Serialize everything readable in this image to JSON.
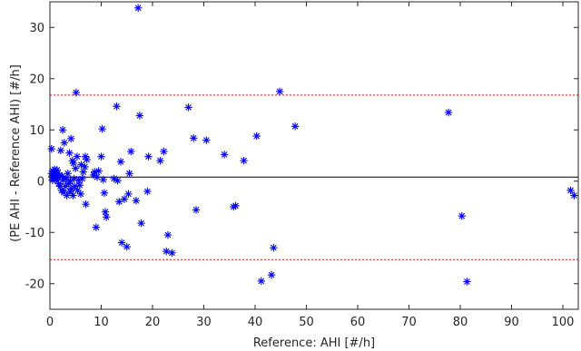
{
  "chart_data": {
    "type": "scatter",
    "xlabel": "Reference: AHI [#/h]",
    "ylabel": "(PE AHI - Reference AHI) [#/h]",
    "xlim": [
      0,
      103
    ],
    "ylim": [
      -25,
      35
    ],
    "xticks": [
      0,
      10,
      20,
      30,
      40,
      50,
      60,
      70,
      80,
      90,
      100
    ],
    "yticks": [
      -20,
      -10,
      0,
      10,
      20,
      30
    ],
    "grid": false,
    "legend": "none",
    "marker": "asterisk",
    "marker_color": "#0000ff",
    "mean_line": {
      "y": 0.8,
      "color": "#000000",
      "style": "solid"
    },
    "limit_lines": [
      {
        "y": 16.8,
        "color": "#ff0000",
        "style": "dotted"
      },
      {
        "y": -15.3,
        "color": "#ff0000",
        "style": "dotted"
      }
    ],
    "points": [
      [
        0.3,
        6.3
      ],
      [
        0.3,
        1.5
      ],
      [
        0.4,
        0.8
      ],
      [
        0.5,
        0.2
      ],
      [
        0.6,
        2.0
      ],
      [
        0.7,
        1.3
      ],
      [
        0.8,
        0.5
      ],
      [
        0.9,
        2.3
      ],
      [
        1.0,
        1.0
      ],
      [
        1.1,
        1.8
      ],
      [
        1.2,
        0.3
      ],
      [
        1.4,
        2.2
      ],
      [
        1.5,
        1.5
      ],
      [
        1.6,
        0.8
      ],
      [
        1.7,
        -0.5
      ],
      [
        1.8,
        1.2
      ],
      [
        2.0,
        -1.0
      ],
      [
        2.1,
        6.0
      ],
      [
        2.3,
        -1.8
      ],
      [
        2.4,
        1.0
      ],
      [
        2.5,
        10.0
      ],
      [
        2.6,
        0.2
      ],
      [
        2.7,
        -2.2
      ],
      [
        2.8,
        7.5
      ],
      [
        3.0,
        -1.0
      ],
      [
        3.2,
        0.5
      ],
      [
        3.3,
        -2.8
      ],
      [
        3.5,
        1.5
      ],
      [
        3.6,
        -0.5
      ],
      [
        3.8,
        5.5
      ],
      [
        3.9,
        -2.0
      ],
      [
        4.0,
        0.0
      ],
      [
        4.1,
        8.3
      ],
      [
        4.2,
        -1.5
      ],
      [
        4.4,
        4.0
      ],
      [
        4.5,
        -2.8
      ],
      [
        4.6,
        3.5
      ],
      [
        4.7,
        0.5
      ],
      [
        4.8,
        -1.0
      ],
      [
        5.0,
        2.5
      ],
      [
        5.1,
        17.3
      ],
      [
        5.3,
        4.8
      ],
      [
        5.4,
        -1.8
      ],
      [
        5.6,
        0.2
      ],
      [
        5.8,
        -0.8
      ],
      [
        6.0,
        -2.5
      ],
      [
        6.1,
        3.2
      ],
      [
        6.3,
        0.5
      ],
      [
        6.5,
        1.8
      ],
      [
        6.8,
        2.8
      ],
      [
        6.9,
        4.8
      ],
      [
        7.0,
        -4.5
      ],
      [
        7.2,
        4.2
      ],
      [
        8.5,
        1.2
      ],
      [
        8.7,
        1.8
      ],
      [
        9.0,
        -9.0
      ],
      [
        9.2,
        0.8
      ],
      [
        9.5,
        2.0
      ],
      [
        10.0,
        4.8
      ],
      [
        10.2,
        10.2
      ],
      [
        10.4,
        0.3
      ],
      [
        10.6,
        -2.3
      ],
      [
        10.8,
        -6.0
      ],
      [
        11.0,
        -7.0
      ],
      [
        12.5,
        0.5
      ],
      [
        13.0,
        14.6
      ],
      [
        13.2,
        0.1
      ],
      [
        13.5,
        -4.0
      ],
      [
        13.8,
        3.8
      ],
      [
        14.0,
        -12.0
      ],
      [
        14.5,
        -3.5
      ],
      [
        15.0,
        -12.8
      ],
      [
        15.3,
        -2.5
      ],
      [
        15.5,
        1.5
      ],
      [
        15.8,
        5.8
      ],
      [
        16.8,
        -3.8
      ],
      [
        17.2,
        33.8
      ],
      [
        17.5,
        12.8
      ],
      [
        17.8,
        -8.2
      ],
      [
        19.0,
        -2.0
      ],
      [
        19.2,
        4.8
      ],
      [
        21.5,
        4.0
      ],
      [
        22.2,
        5.8
      ],
      [
        22.7,
        -13.7
      ],
      [
        23.0,
        -10.5
      ],
      [
        23.8,
        -14.0
      ],
      [
        27.0,
        14.4
      ],
      [
        28.0,
        8.4
      ],
      [
        28.5,
        -5.6
      ],
      [
        30.5,
        8.0
      ],
      [
        34.0,
        5.2
      ],
      [
        35.8,
        -5.0
      ],
      [
        36.2,
        -4.8
      ],
      [
        37.8,
        4.0
      ],
      [
        40.3,
        8.8
      ],
      [
        41.2,
        -19.5
      ],
      [
        43.2,
        -18.3
      ],
      [
        43.6,
        -13.0
      ],
      [
        44.8,
        17.5
      ],
      [
        47.8,
        10.7
      ],
      [
        77.7,
        13.4
      ],
      [
        80.3,
        -6.8
      ],
      [
        81.3,
        -19.6
      ],
      [
        101.5,
        -1.8
      ],
      [
        102.2,
        -2.8
      ]
    ]
  }
}
